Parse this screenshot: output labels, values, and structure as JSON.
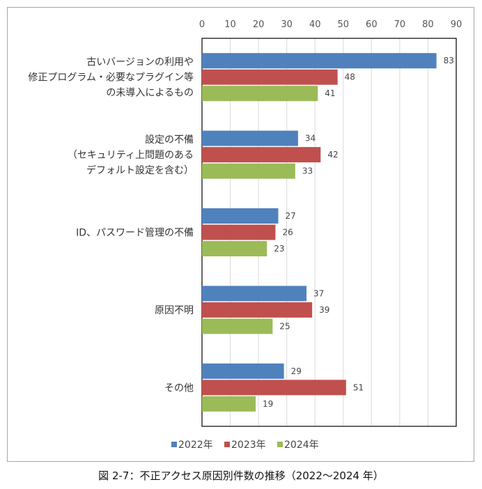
{
  "caption": "図 2-7：不正アクセス原因別件数の推移（2022～2024 年）",
  "chart_data": {
    "type": "bar",
    "orientation": "horizontal",
    "xlim": [
      0,
      90
    ],
    "xticks": [
      0,
      10,
      20,
      30,
      40,
      50,
      60,
      70,
      80,
      90
    ],
    "grid": true,
    "legend_position": "bottom",
    "categories": [
      [
        "古いバージョンの利用や",
        "修正プログラム・必要なプラグイン等",
        "の未導入によるもの"
      ],
      [
        "設定の不備",
        "（セキュリティ上問題のある",
        "デフォルト設定を含む）"
      ],
      [
        "ID、パスワード管理の不備"
      ],
      [
        "原因不明"
      ],
      [
        "その他"
      ]
    ],
    "series": [
      {
        "name": "2022年",
        "color": "#4f81bd",
        "values": [
          83,
          34,
          27,
          37,
          29
        ]
      },
      {
        "name": "2023年",
        "color": "#c0504d",
        "values": [
          48,
          42,
          26,
          39,
          51
        ]
      },
      {
        "name": "2024年",
        "color": "#9bbb59",
        "values": [
          41,
          33,
          23,
          25,
          19
        ]
      }
    ]
  }
}
